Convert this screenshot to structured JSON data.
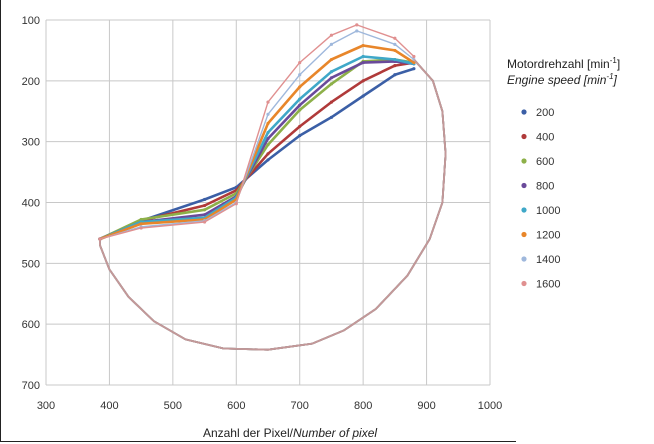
{
  "chart_data": {
    "type": "scatter",
    "xlabel": "Anzahl der Pixel",
    "xlabel_en": "Number of pixel",
    "xlabel_separator": "/",
    "ylabel": "",
    "xlim": [
      300,
      1000
    ],
    "ylim": [
      700,
      100
    ],
    "y_inverted": true,
    "x_ticks": [
      300,
      400,
      500,
      600,
      700,
      800,
      900,
      1000
    ],
    "y_ticks": [
      100,
      200,
      300,
      400,
      500,
      600,
      700
    ],
    "grid": true,
    "legend": {
      "title_de": "Motordrehzahl [min",
      "title_de_exp": "-1",
      "title_de_end": "]",
      "title_en": "Engine speed [min",
      "title_en_exp": "-1",
      "title_en_end": "]",
      "placement": "right"
    },
    "series": [
      {
        "name": "200",
        "color": "#3b5fa6",
        "upper": [
          [
            385,
            460
          ],
          [
            450,
            430
          ],
          [
            550,
            395
          ],
          [
            600,
            375
          ],
          [
            650,
            330
          ],
          [
            700,
            290
          ],
          [
            750,
            260
          ],
          [
            800,
            225
          ],
          [
            850,
            190
          ],
          [
            880,
            180
          ]
        ]
      },
      {
        "name": "400",
        "color": "#b03a3a",
        "upper": [
          [
            385,
            460
          ],
          [
            450,
            430
          ],
          [
            550,
            405
          ],
          [
            600,
            380
          ],
          [
            650,
            320
          ],
          [
            700,
            275
          ],
          [
            750,
            235
          ],
          [
            800,
            200
          ],
          [
            850,
            175
          ],
          [
            880,
            170
          ]
        ]
      },
      {
        "name": "600",
        "color": "#8db049",
        "upper": [
          [
            385,
            460
          ],
          [
            450,
            428
          ],
          [
            550,
            412
          ],
          [
            600,
            385
          ],
          [
            650,
            305
          ],
          [
            700,
            248
          ],
          [
            750,
            205
          ],
          [
            800,
            168
          ],
          [
            850,
            165
          ],
          [
            880,
            170
          ]
        ]
      },
      {
        "name": "800",
        "color": "#6a4a9a",
        "upper": [
          [
            385,
            460
          ],
          [
            450,
            432
          ],
          [
            550,
            420
          ],
          [
            600,
            390
          ],
          [
            650,
            295
          ],
          [
            700,
            240
          ],
          [
            750,
            195
          ],
          [
            800,
            170
          ],
          [
            850,
            168
          ],
          [
            880,
            172
          ]
        ]
      },
      {
        "name": "1000",
        "color": "#3fa8c8",
        "upper": [
          [
            385,
            460
          ],
          [
            450,
            432
          ],
          [
            550,
            425
          ],
          [
            600,
            392
          ],
          [
            650,
            285
          ],
          [
            700,
            230
          ],
          [
            750,
            185
          ],
          [
            800,
            160
          ],
          [
            850,
            165
          ],
          [
            880,
            172
          ]
        ]
      },
      {
        "name": "1200",
        "color": "#e8862a",
        "upper": [
          [
            385,
            460
          ],
          [
            450,
            435
          ],
          [
            550,
            428
          ],
          [
            600,
            395
          ],
          [
            650,
            270
          ],
          [
            700,
            210
          ],
          [
            750,
            165
          ],
          [
            800,
            142
          ],
          [
            850,
            150
          ],
          [
            880,
            170
          ]
        ]
      },
      {
        "name": "1400",
        "color": "#9fb8dc",
        "upper": [
          [
            385,
            460
          ],
          [
            450,
            440
          ],
          [
            550,
            430
          ],
          [
            600,
            400
          ],
          [
            650,
            255
          ],
          [
            700,
            190
          ],
          [
            750,
            140
          ],
          [
            790,
            118
          ],
          [
            850,
            140
          ],
          [
            880,
            165
          ]
        ]
      },
      {
        "name": "1600",
        "color": "#e09090",
        "upper": [
          [
            385,
            460
          ],
          [
            450,
            442
          ],
          [
            550,
            432
          ],
          [
            600,
            402
          ],
          [
            650,
            235
          ],
          [
            700,
            170
          ],
          [
            750,
            125
          ],
          [
            790,
            108
          ],
          [
            850,
            130
          ],
          [
            880,
            160
          ]
        ]
      }
    ],
    "lower_loop": [
      [
        880,
        165
      ],
      [
        910,
        200
      ],
      [
        925,
        250
      ],
      [
        930,
        320
      ],
      [
        925,
        400
      ],
      [
        905,
        460
      ],
      [
        870,
        520
      ],
      [
        820,
        575
      ],
      [
        770,
        610
      ],
      [
        720,
        632
      ],
      [
        650,
        642
      ],
      [
        580,
        640
      ],
      [
        520,
        625
      ],
      [
        470,
        595
      ],
      [
        430,
        555
      ],
      [
        400,
        510
      ],
      [
        385,
        470
      ],
      [
        385,
        460
      ]
    ]
  }
}
